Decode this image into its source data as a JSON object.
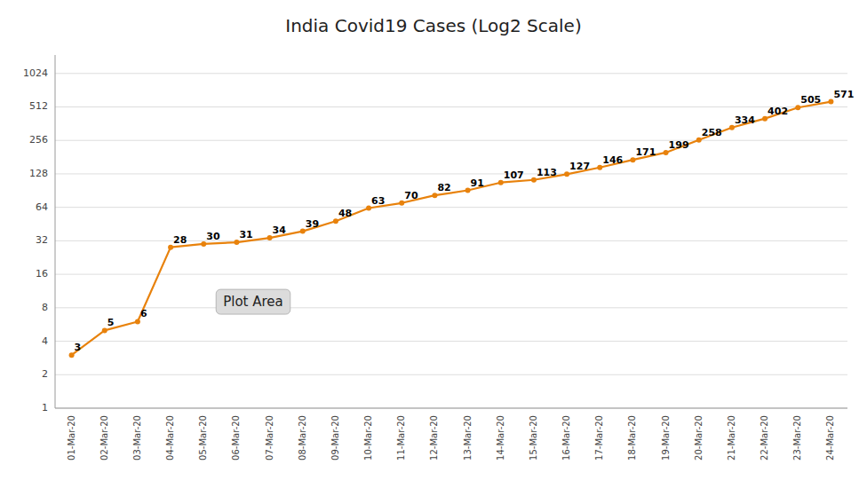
{
  "chart_data": {
    "type": "line",
    "title": "India Covid19 Cases (Log2 Scale)",
    "categories": [
      "01-Mar-20",
      "02-Mar-20",
      "03-Mar-20",
      "04-Mar-20",
      "05-Mar-20",
      "06-Mar-20",
      "07-Mar-20",
      "08-Mar-20",
      "09-Mar-20",
      "10-Mar-20",
      "11-Mar-20",
      "12-Mar-20",
      "13-Mar-20",
      "14-Mar-20",
      "15-Mar-20",
      "16-Mar-20",
      "17-Mar-20",
      "18-Mar-20",
      "19-Mar-20",
      "20-Mar-20",
      "21-Mar-20",
      "22-Mar-20",
      "23-Mar-20",
      "24-Mar-20"
    ],
    "values": [
      3,
      5,
      6,
      28,
      30,
      31,
      34,
      39,
      48,
      63,
      70,
      82,
      91,
      107,
      113,
      127,
      146,
      171,
      199,
      258,
      334,
      402,
      505,
      571
    ],
    "color": "#E8820C",
    "marker": "circle",
    "log": "y",
    "ylim": [
      1,
      1500
    ],
    "yticks": [
      1,
      2,
      4,
      8,
      16,
      32,
      64,
      128,
      256,
      512,
      1024
    ],
    "grid": true,
    "data_labels": true,
    "annotations": [
      "Plot Area"
    ]
  }
}
